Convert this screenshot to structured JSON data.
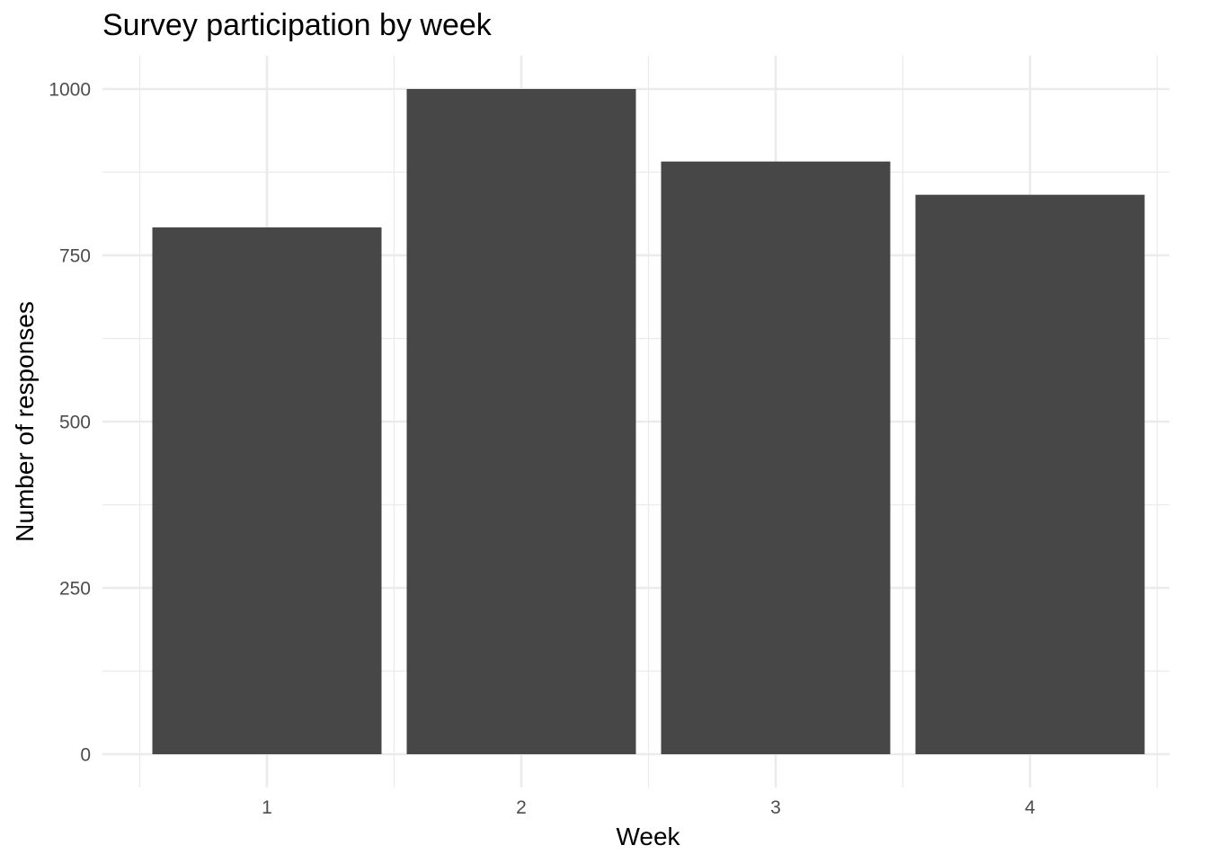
{
  "chart_data": {
    "type": "bar",
    "title": "Survey participation by week",
    "xlabel": "Week",
    "ylabel": "Number of responses",
    "categories": [
      "1",
      "2",
      "3",
      "4"
    ],
    "values": [
      792,
      1000,
      891,
      841
    ],
    "ylim": [
      0,
      1000
    ],
    "yticks": [
      0,
      250,
      500,
      750,
      1000
    ],
    "ytick_labels": [
      "0",
      "250",
      "500",
      "750",
      "1000"
    ],
    "grid": true,
    "legend": "none",
    "bar_color": "#474747",
    "grid_color": "#ebebeb",
    "background_color": "#ffffff"
  }
}
